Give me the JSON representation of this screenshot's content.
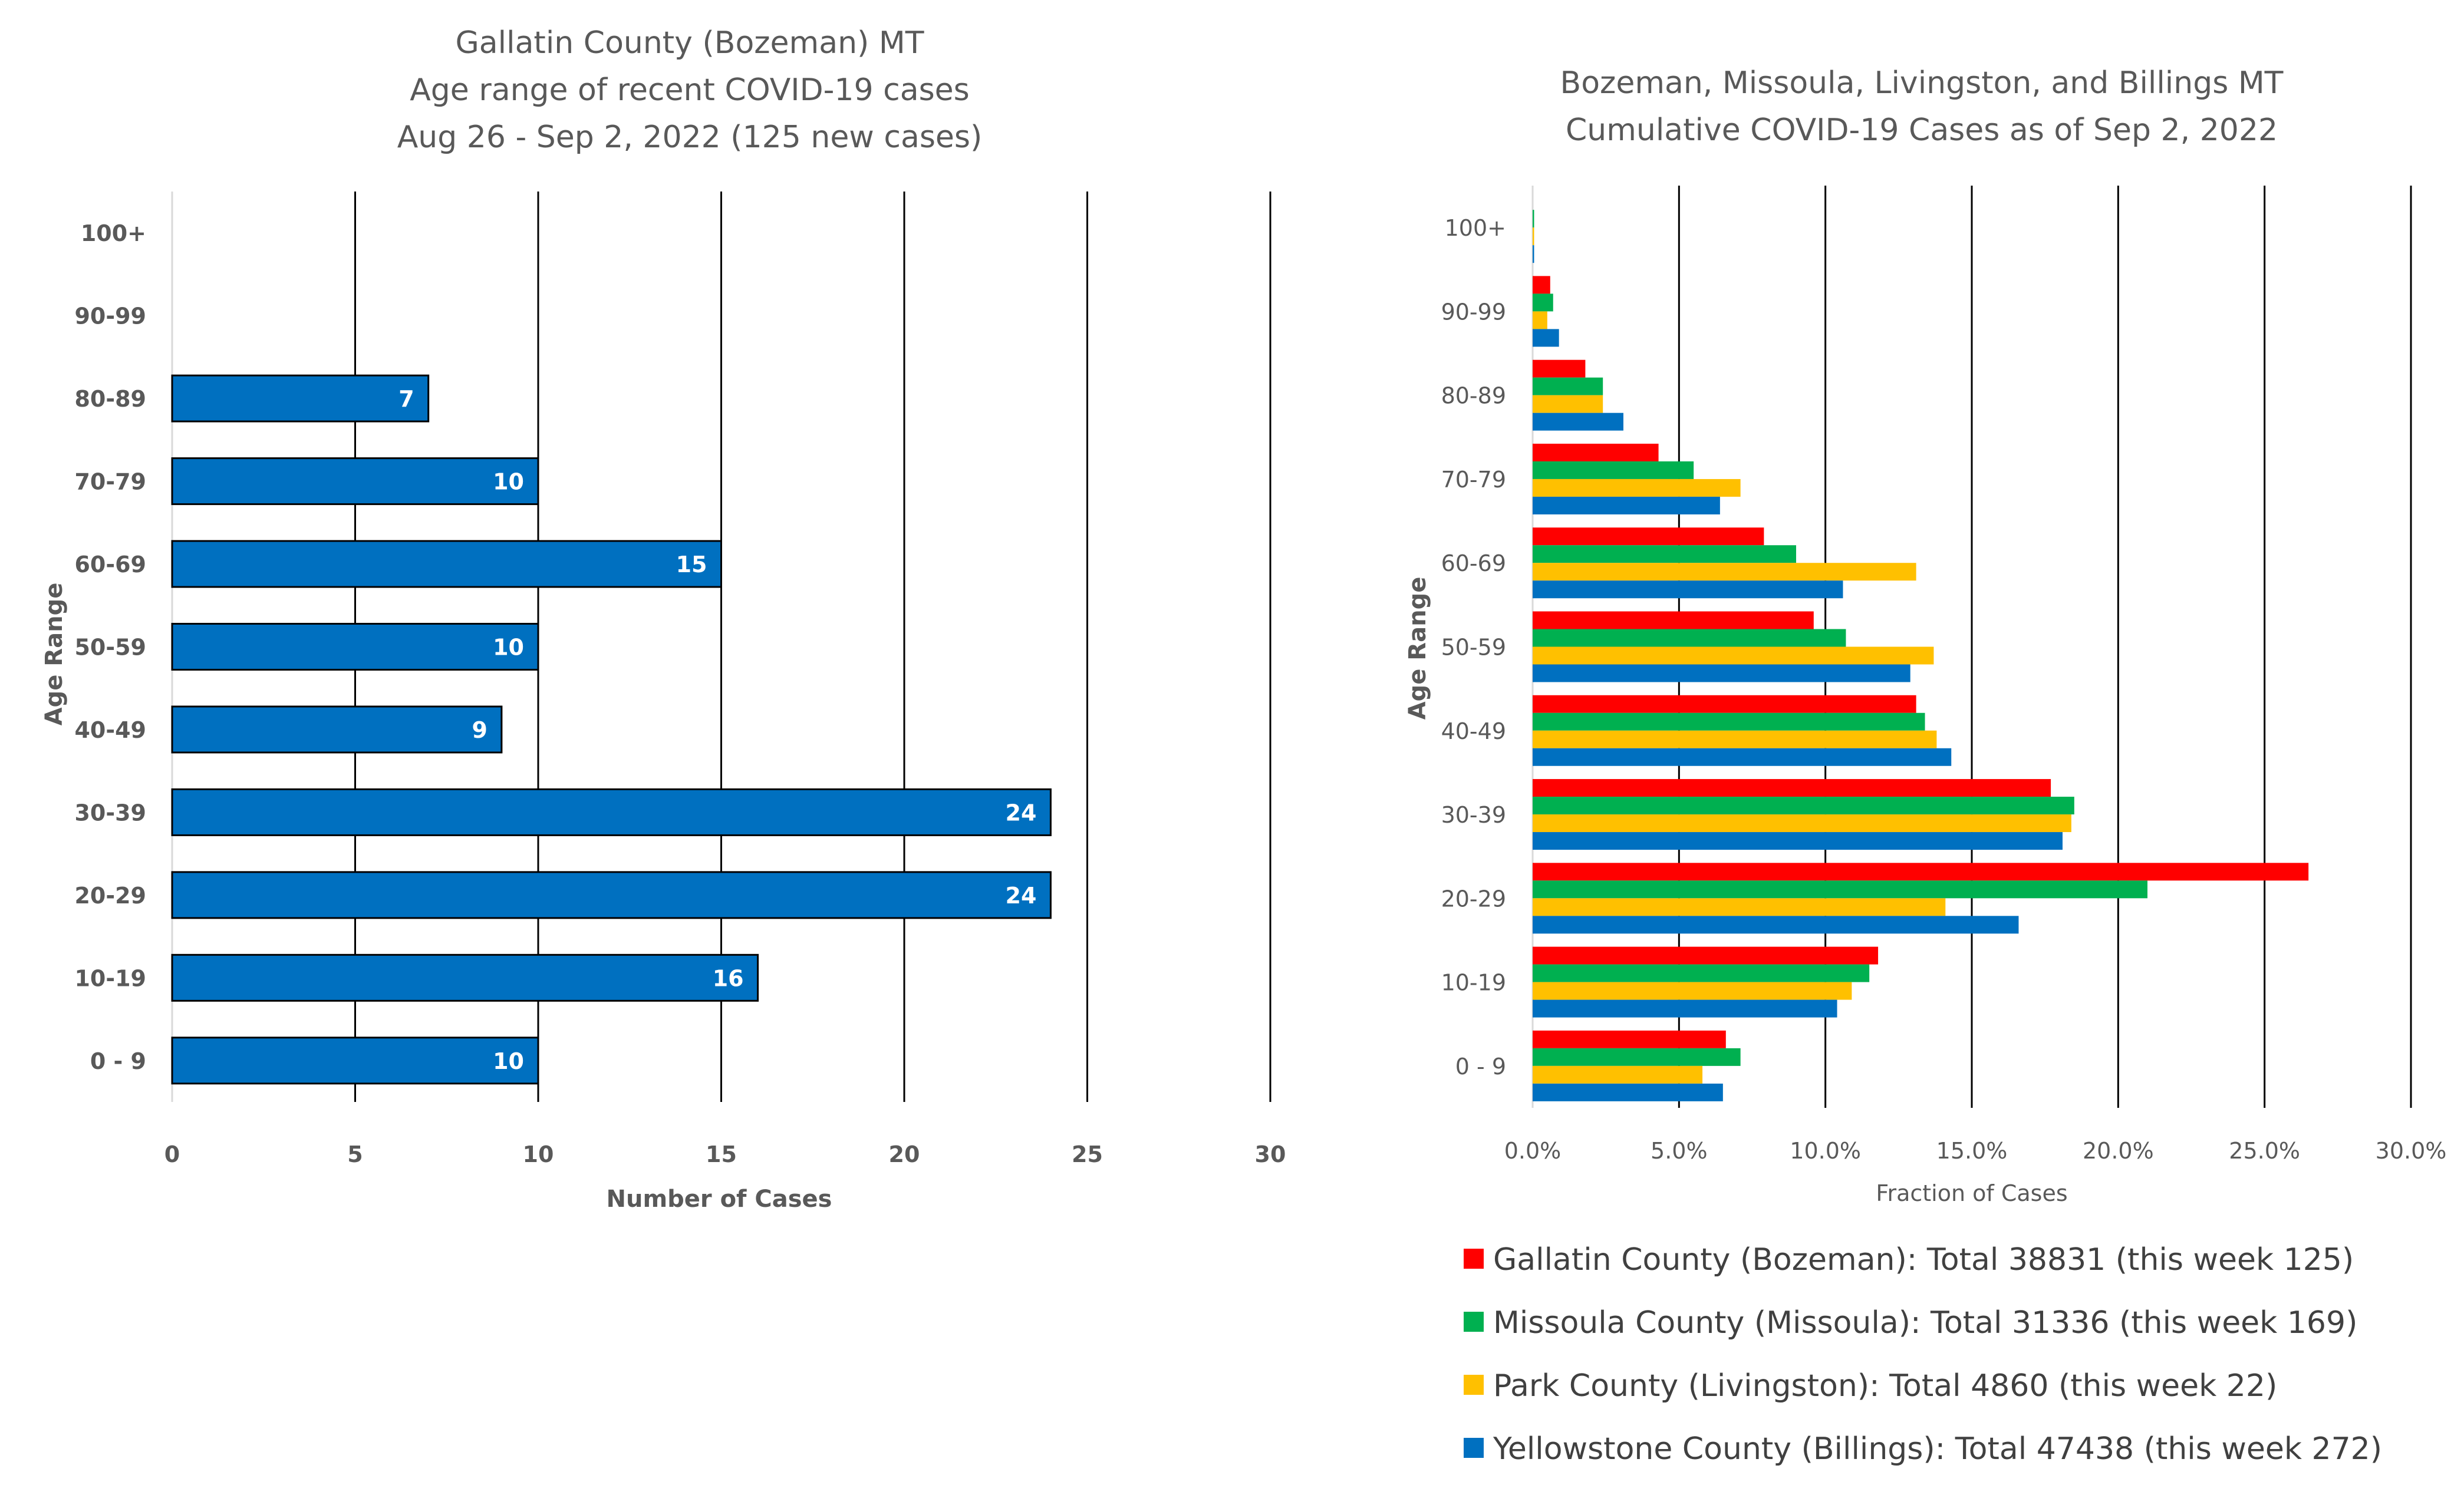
{
  "chart_data": [
    {
      "type": "bar",
      "orientation": "horizontal",
      "title": [
        "Gallatin County (Bozeman) MT",
        "Age range of recent COVID-19 cases",
        "Aug 26 - Sep 2, 2022 (125 new cases)"
      ],
      "xlabel": "Number of Cases",
      "ylabel": "Age Range",
      "categories": [
        "0 - 9",
        "10-19",
        "20-29",
        "30-39",
        "40-49",
        "50-59",
        "60-69",
        "70-79",
        "80-89",
        "90-99",
        "100+"
      ],
      "values": [
        10,
        16,
        24,
        24,
        9,
        10,
        15,
        10,
        7,
        0,
        0
      ],
      "data_labels": [
        "10",
        "16",
        "24",
        "24",
        "9",
        "10",
        "15",
        "10",
        "7",
        "",
        ""
      ],
      "xlim": [
        0,
        30
      ],
      "xticks": [
        "0",
        "5",
        "10",
        "15",
        "20",
        "25",
        "30"
      ],
      "grid": "vertical",
      "color": "#0070C0"
    },
    {
      "type": "bar",
      "orientation": "horizontal",
      "title": [
        "Bozeman, Missoula, Livingston, and Billings MT",
        "Cumulative COVID-19 Cases as of Sep 2, 2022"
      ],
      "xlabel": "Fraction of Cases",
      "ylabel": "Age Range",
      "categories": [
        "0 - 9",
        "10-19",
        "20-29",
        "30-39",
        "40-49",
        "50-59",
        "60-69",
        "70-79",
        "80-89",
        "90-99",
        "100+"
      ],
      "xlim": [
        0,
        30
      ],
      "xticks": [
        "0.0%",
        "5.0%",
        "10.0%",
        "15.0%",
        "20.0%",
        "25.0%",
        "30.0%"
      ],
      "grid": "vertical",
      "legend_position": "bottom",
      "series": [
        {
          "name": "Gallatin County (Bozeman): Total 38831 (this week 125)",
          "color": "#FF0000",
          "values": [
            6.6,
            11.8,
            26.5,
            17.7,
            13.1,
            9.6,
            7.9,
            4.3,
            1.8,
            0.6,
            0.0
          ]
        },
        {
          "name": "Missoula County (Missoula): Total 31336 (this week 169)",
          "color": "#00B050",
          "values": [
            7.1,
            11.5,
            21.0,
            18.5,
            13.4,
            10.7,
            9.0,
            5.5,
            2.4,
            0.7,
            0.05
          ]
        },
        {
          "name": "Park County (Livingston): Total 4860 (this week 22)",
          "color": "#FFC000",
          "values": [
            5.8,
            10.9,
            14.1,
            18.4,
            13.8,
            13.7,
            13.1,
            7.1,
            2.4,
            0.5,
            0.05
          ]
        },
        {
          "name": "Yellowstone County (Billings): Total 47438 (this week 272)",
          "color": "#0070C0",
          "values": [
            6.5,
            10.4,
            16.6,
            18.1,
            14.3,
            12.9,
            10.6,
            6.4,
            3.1,
            0.9,
            0.05
          ]
        }
      ]
    }
  ]
}
